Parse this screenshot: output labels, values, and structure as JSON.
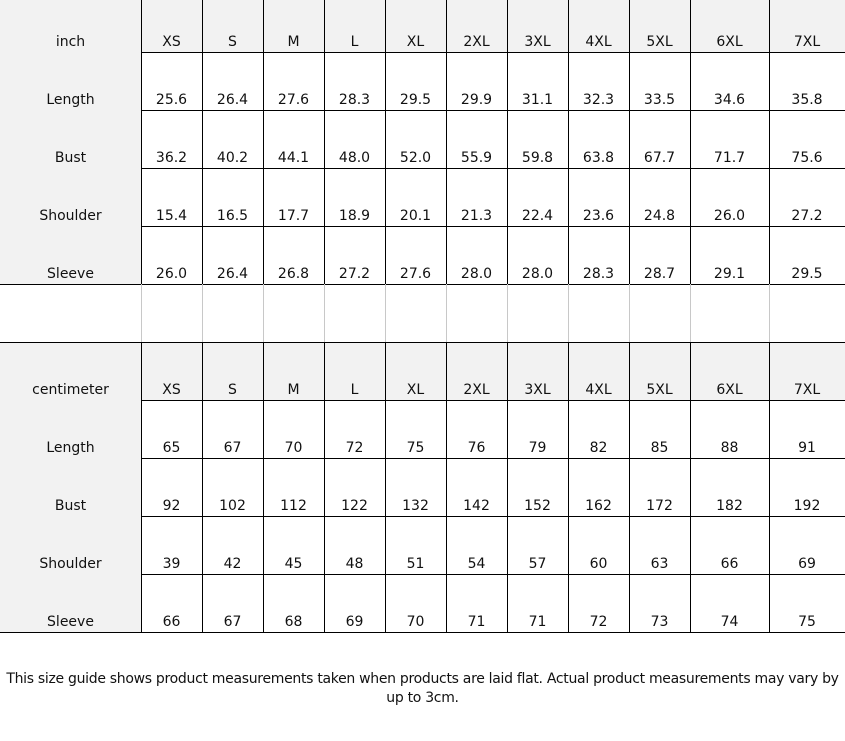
{
  "tables": [
    {
      "unit": "inch",
      "sizes": [
        "XS",
        "S",
        "M",
        "L",
        "XL",
        "2XL",
        "3XL",
        "4XL",
        "5XL",
        "6XL",
        "7XL"
      ],
      "rows": [
        {
          "label": "Length",
          "values": [
            "25.6",
            "26.4",
            "27.6",
            "28.3",
            "29.5",
            "29.9",
            "31.1",
            "32.3",
            "33.5",
            "34.6",
            "35.8"
          ]
        },
        {
          "label": "Bust",
          "values": [
            "36.2",
            "40.2",
            "44.1",
            "48.0",
            "52.0",
            "55.9",
            "59.8",
            "63.8",
            "67.7",
            "71.7",
            "75.6"
          ]
        },
        {
          "label": "Shoulder",
          "values": [
            "15.4",
            "16.5",
            "17.7",
            "18.9",
            "20.1",
            "21.3",
            "22.4",
            "23.6",
            "24.8",
            "26.0",
            "27.2"
          ]
        },
        {
          "label": "Sleeve",
          "values": [
            "26.0",
            "26.4",
            "26.8",
            "27.2",
            "27.6",
            "28.0",
            "28.0",
            "28.3",
            "28.7",
            "29.1",
            "29.5"
          ]
        }
      ]
    },
    {
      "unit": "centimeter",
      "sizes": [
        "XS",
        "S",
        "M",
        "L",
        "XL",
        "2XL",
        "3XL",
        "4XL",
        "5XL",
        "6XL",
        "7XL"
      ],
      "rows": [
        {
          "label": "Length",
          "values": [
            "65",
            "67",
            "70",
            "72",
            "75",
            "76",
            "79",
            "82",
            "85",
            "88",
            "91"
          ]
        },
        {
          "label": "Bust",
          "values": [
            "92",
            "102",
            "112",
            "122",
            "132",
            "142",
            "152",
            "162",
            "172",
            "182",
            "192"
          ]
        },
        {
          "label": "Shoulder",
          "values": [
            "39",
            "42",
            "45",
            "48",
            "51",
            "54",
            "57",
            "60",
            "63",
            "66",
            "69"
          ]
        },
        {
          "label": "Sleeve",
          "values": [
            "66",
            "67",
            "68",
            "69",
            "70",
            "71",
            "71",
            "72",
            "73",
            "74",
            "75"
          ]
        }
      ]
    }
  ],
  "note": "This size guide shows product measurements taken when products are laid flat. Actual product measurements may vary by up to 3cm.",
  "colors": {
    "header_bg": "#f2f2f2",
    "border": "#000000"
  }
}
